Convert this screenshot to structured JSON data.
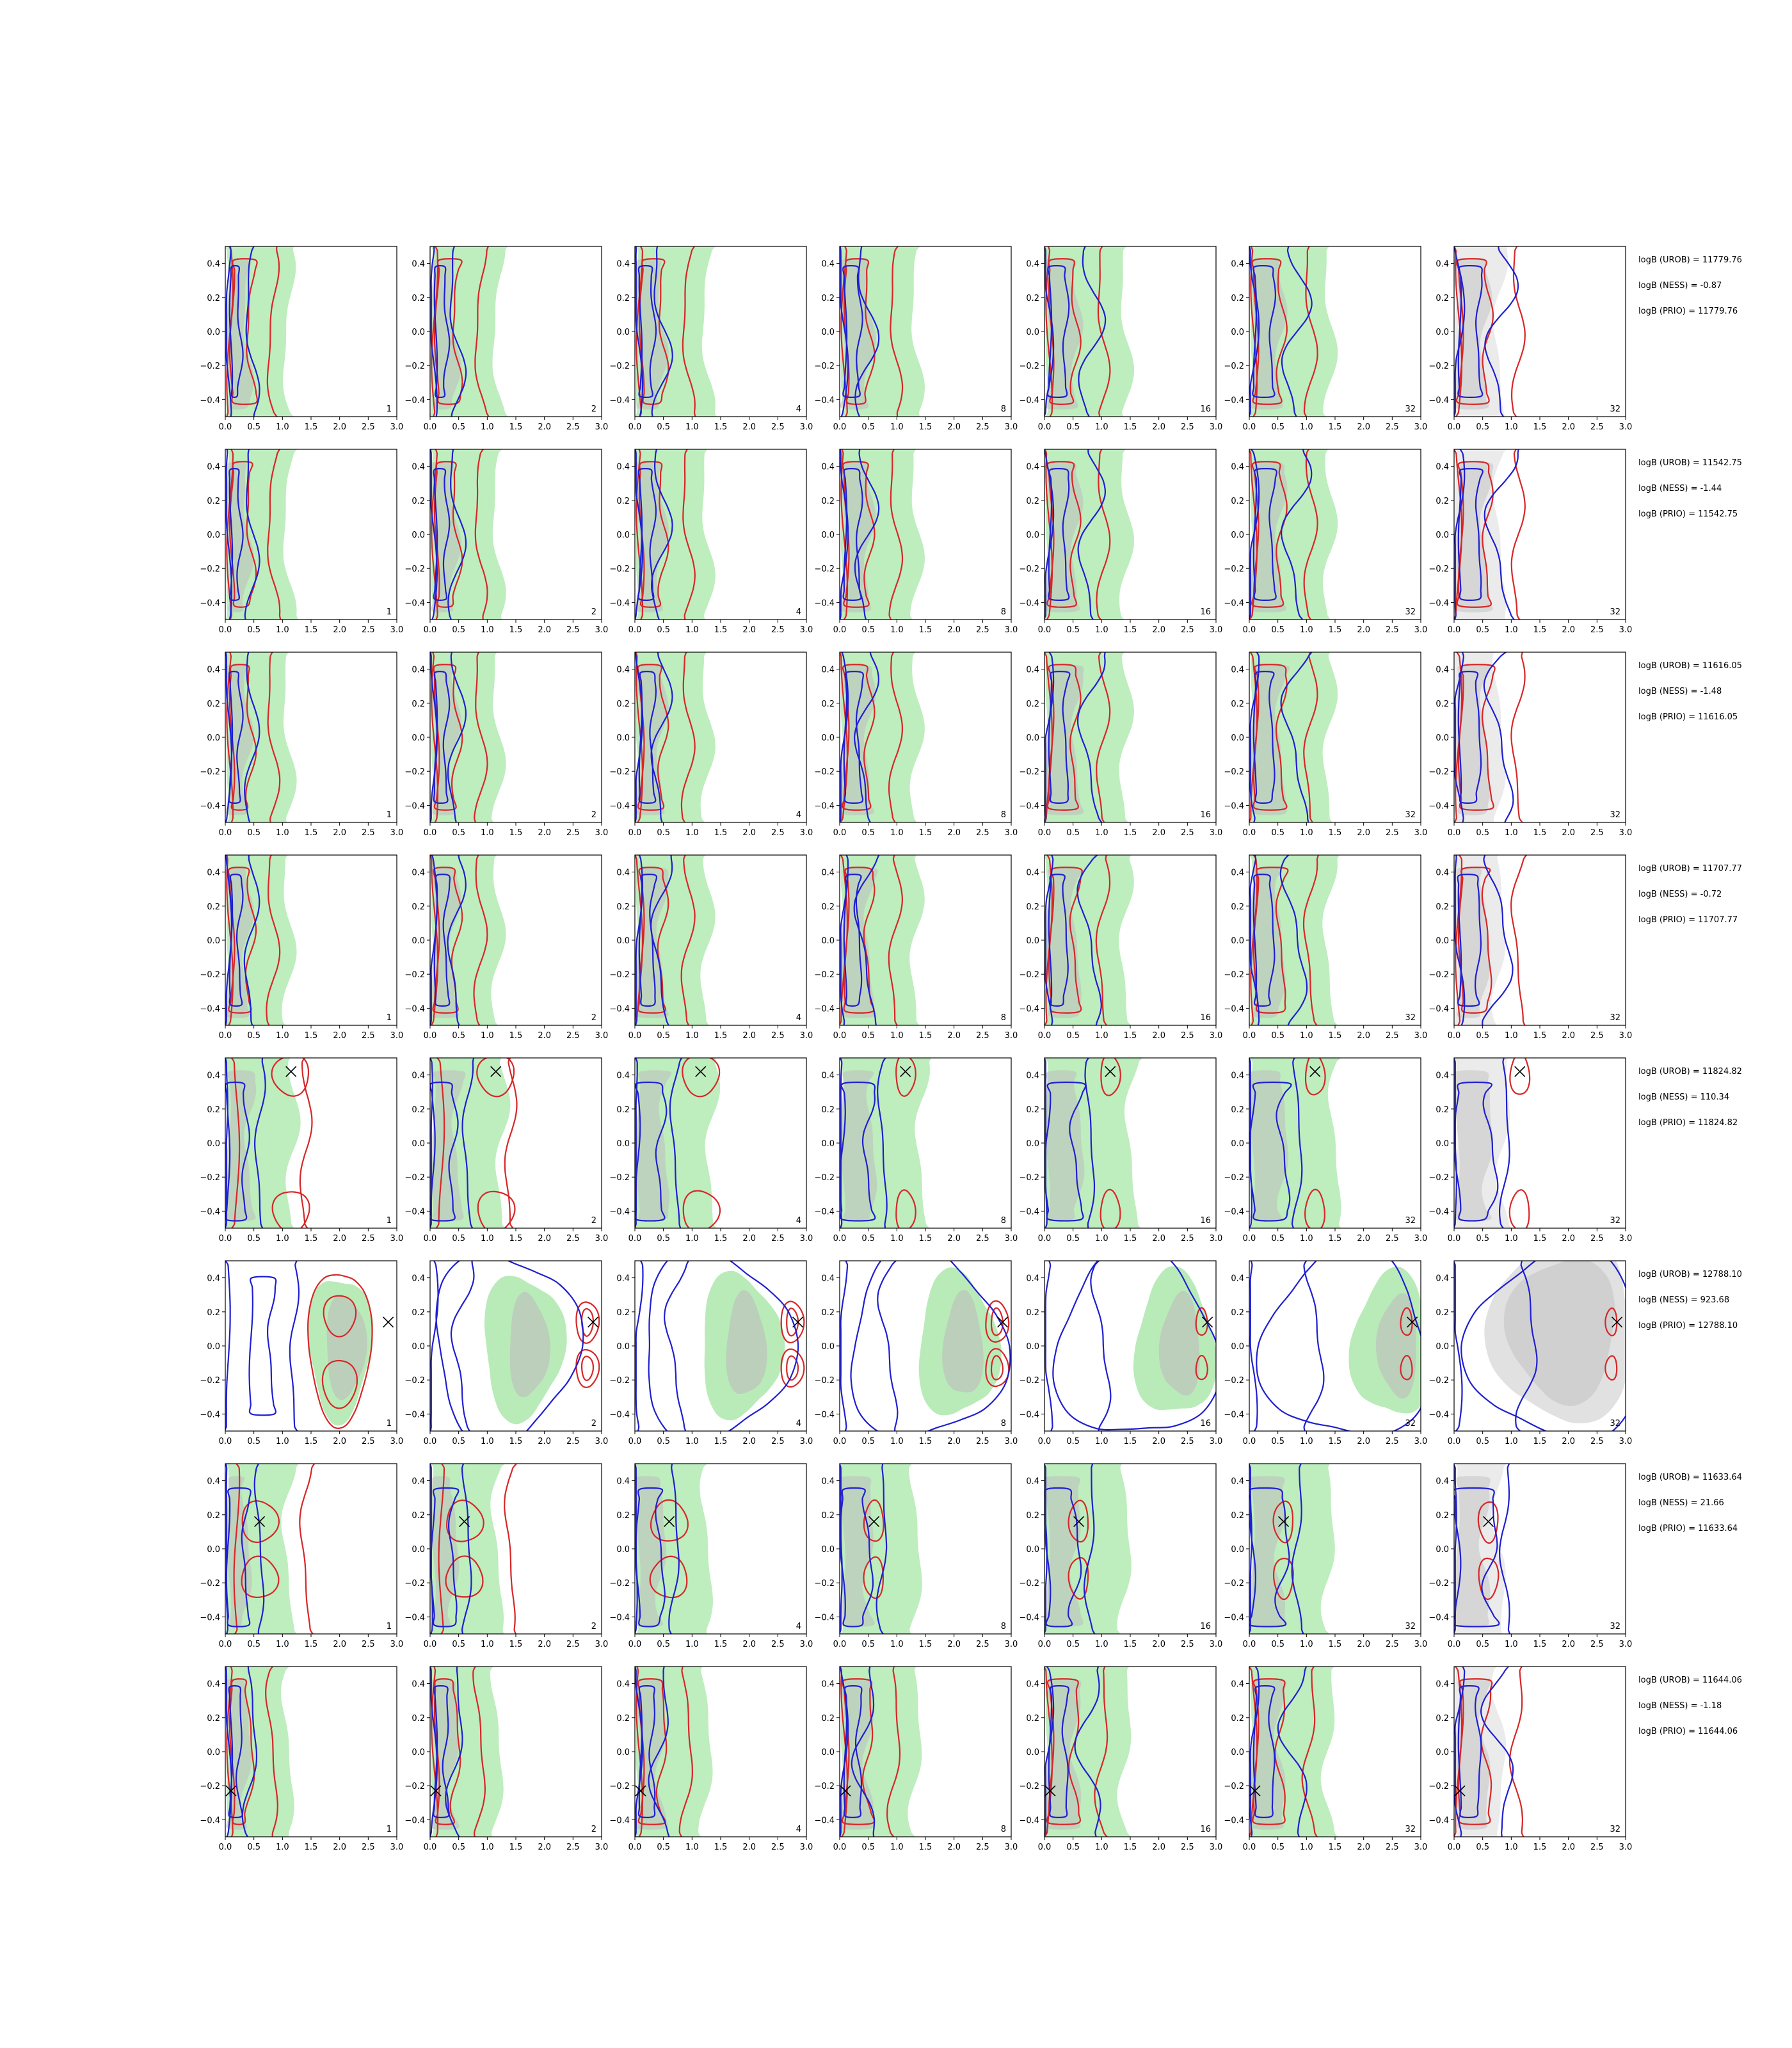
{
  "chart_data": {
    "type": "contour-grid",
    "layout": {
      "rows": 8,
      "columns": 7
    },
    "xlim": [
      0,
      3.0
    ],
    "ylim": [
      -0.5,
      0.5
    ],
    "xticks": [
      "0.0",
      "0.5",
      "1.0",
      "1.5",
      "2.0",
      "2.5",
      "3.0"
    ],
    "yticks": [
      "−0.4",
      "−0.2",
      "0.0",
      "0.2",
      "0.4"
    ],
    "panel_labels": [
      "1",
      "2",
      "4",
      "8",
      "16",
      "32",
      "32"
    ],
    "colors": {
      "red": "#d62728",
      "blue": "#1f1fd0",
      "green_fill": "#9be39b",
      "gray_fill": "#bdbdbd"
    },
    "rows": [
      {
        "logB": [
          "logB (UROB) = 11779.76",
          "logB (NESS) = -0.87",
          "logB (PRIO) = 11779.76"
        ],
        "marker": null
      },
      {
        "logB": [
          "logB (UROB) = 11542.75",
          "logB (NESS) = -1.44",
          "logB (PRIO) = 11542.75"
        ],
        "marker": null
      },
      {
        "logB": [
          "logB (UROB) = 11616.05",
          "logB (NESS) = -1.48",
          "logB (PRIO) = 11616.05"
        ],
        "marker": null
      },
      {
        "logB": [
          "logB (UROB) = 11707.77",
          "logB (NESS) = -0.72",
          "logB (PRIO) = 11707.77"
        ],
        "marker": null
      },
      {
        "logB": [
          "logB (UROB) = 11824.82",
          "logB (NESS) = 110.34",
          "logB (PRIO) = 11824.82"
        ],
        "marker": [
          1.15,
          0.42
        ]
      },
      {
        "logB": [
          "logB (UROB) = 12788.10",
          "logB (NESS) = 923.68",
          "logB (PRIO) = 12788.10"
        ],
        "marker": [
          2.85,
          0.14
        ]
      },
      {
        "logB": [
          "logB (UROB) = 11633.64",
          "logB (NESS) = 21.66",
          "logB (PRIO) = 11633.64"
        ],
        "marker": [
          0.6,
          0.16
        ]
      },
      {
        "logB": [
          "logB (UROB) = 11644.06",
          "logB (NESS) = -1.18",
          "logB (PRIO) = 11644.06"
        ],
        "marker": [
          0.1,
          -0.23
        ]
      }
    ]
  }
}
